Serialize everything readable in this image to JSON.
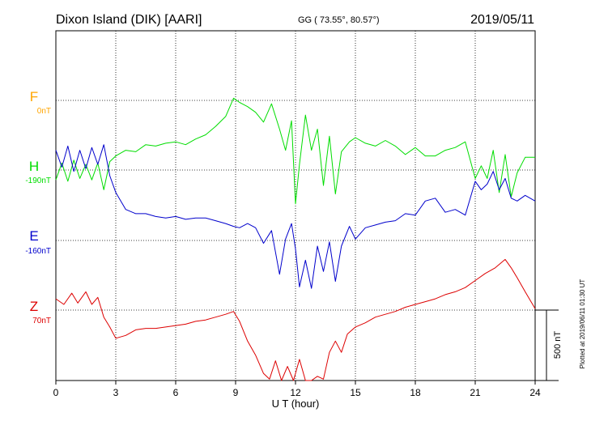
{
  "header": {
    "station": "Dixon Island (DIK)  [AARI]",
    "coords": "GG ( 73.55°,  80.57°)",
    "date": "2019/05/11"
  },
  "footer": {
    "plotted": "Plotted at 2019/06/11 01:30 UT"
  },
  "colors": {
    "F": "#ffa500",
    "H": "#00dd00",
    "E": "#0000cc",
    "Z": "#dd0000",
    "grid": "#000000"
  },
  "chart_data": {
    "type": "line",
    "xlabel": "U T (hour)",
    "xlim": [
      0,
      24
    ],
    "xticks": [
      "0",
      "3",
      "6",
      "9",
      "12",
      "15",
      "18",
      "21",
      "24"
    ],
    "scale_bar": {
      "label": "500 nT",
      "value": 500
    },
    "grid": true,
    "series": [
      {
        "name": "F",
        "offset_label": "0nT",
        "baseline_nT": 0,
        "x": [],
        "values": []
      },
      {
        "name": "H",
        "offset_label": "-190nT",
        "baseline_nT": -190,
        "x": [
          0,
          0.3,
          0.6,
          0.9,
          1.2,
          1.5,
          1.8,
          2.1,
          2.4,
          2.7,
          3.0,
          3.5,
          4.0,
          4.5,
          5.0,
          5.5,
          6.0,
          6.5,
          7.0,
          7.5,
          8.0,
          8.5,
          8.9,
          9.2,
          9.6,
          10.0,
          10.4,
          10.8,
          11.2,
          11.5,
          11.8,
          12.0,
          12.2,
          12.5,
          12.8,
          13.1,
          13.4,
          13.7,
          14.0,
          14.3,
          14.7,
          15.0,
          15.5,
          16.0,
          16.5,
          17.0,
          17.5,
          18.0,
          18.5,
          19.0,
          19.5,
          20.0,
          20.5,
          21.0,
          21.3,
          21.6,
          21.9,
          22.2,
          22.5,
          22.8,
          23.1,
          23.5,
          24.0
        ],
        "values": [
          -260,
          -140,
          -270,
          -120,
          -250,
          -150,
          -260,
          -140,
          -330,
          -130,
          -90,
          -50,
          -60,
          -10,
          -20,
          0,
          10,
          -10,
          30,
          60,
          120,
          190,
          320,
          290,
          260,
          220,
          150,
          280,
          100,
          -50,
          160,
          -430,
          -150,
          200,
          -50,
          100,
          -300,
          50,
          -360,
          -60,
          10,
          40,
          0,
          -20,
          20,
          -20,
          -80,
          -30,
          -90,
          -90,
          -50,
          -30,
          10,
          -250,
          -160,
          -250,
          -50,
          -350,
          -80,
          -380,
          -210,
          -100,
          -100
        ]
      },
      {
        "name": "E",
        "offset_label": "-160nT",
        "baseline_nT": -160,
        "x": [
          0,
          0.3,
          0.6,
          0.9,
          1.2,
          1.5,
          1.8,
          2.1,
          2.4,
          2.7,
          3.0,
          3.5,
          4.0,
          4.5,
          5.0,
          5.5,
          6.0,
          6.5,
          7.0,
          7.5,
          8.0,
          8.5,
          8.9,
          9.2,
          9.6,
          10.0,
          10.4,
          10.8,
          11.2,
          11.5,
          11.8,
          12.0,
          12.2,
          12.5,
          12.8,
          13.1,
          13.4,
          13.7,
          14.0,
          14.3,
          14.7,
          15.0,
          15.5,
          16.0,
          16.5,
          17.0,
          17.5,
          18.0,
          18.5,
          19.0,
          19.5,
          20.0,
          20.5,
          21.0,
          21.3,
          21.6,
          21.9,
          22.2,
          22.5,
          22.8,
          23.1,
          23.5,
          24.0
        ],
        "values": [
          480,
          360,
          510,
          330,
          480,
          350,
          500,
          380,
          520,
          300,
          180,
          60,
          30,
          30,
          10,
          0,
          10,
          -10,
          0,
          0,
          -20,
          -40,
          -60,
          -70,
          -40,
          -70,
          -180,
          -90,
          -400,
          -150,
          -40,
          -220,
          -490,
          -300,
          -500,
          -200,
          -380,
          -170,
          -450,
          -200,
          -60,
          -150,
          -70,
          -50,
          -30,
          -20,
          30,
          20,
          120,
          140,
          40,
          60,
          20,
          260,
          200,
          240,
          330,
          200,
          280,
          140,
          120,
          160,
          120
        ]
      },
      {
        "name": "Z",
        "offset_label": "70nT",
        "baseline_nT": 70,
        "x": [
          0,
          0.4,
          0.8,
          1.1,
          1.5,
          1.8,
          2.1,
          2.4,
          2.7,
          3.0,
          3.5,
          4.0,
          4.5,
          5.0,
          5.5,
          6.0,
          6.5,
          7.0,
          7.5,
          8.0,
          8.5,
          8.9,
          9.2,
          9.6,
          10.0,
          10.4,
          10.7,
          11.0,
          11.3,
          11.6,
          11.9,
          12.2,
          12.5,
          12.8,
          13.1,
          13.4,
          13.7,
          14.0,
          14.3,
          14.6,
          15.0,
          15.5,
          16.0,
          16.5,
          17.0,
          17.5,
          18.0,
          18.5,
          19.0,
          19.5,
          20.0,
          20.5,
          21.0,
          21.5,
          22.0,
          22.5,
          22.8,
          23.1,
          23.5,
          24.0
        ],
        "values": [
          150,
          110,
          190,
          120,
          200,
          110,
          160,
          20,
          -50,
          -130,
          -110,
          -70,
          -60,
          -60,
          -50,
          -40,
          -30,
          -10,
          0,
          20,
          40,
          60,
          -10,
          -150,
          -250,
          -380,
          -420,
          -290,
          -450,
          -330,
          -440,
          -280,
          -500,
          -480,
          -400,
          -420,
          -230,
          -150,
          -230,
          -100,
          -50,
          -20,
          20,
          40,
          60,
          90,
          110,
          130,
          150,
          180,
          200,
          230,
          280,
          330,
          370,
          430,
          370,
          300,
          200,
          80
        ]
      }
    ]
  }
}
